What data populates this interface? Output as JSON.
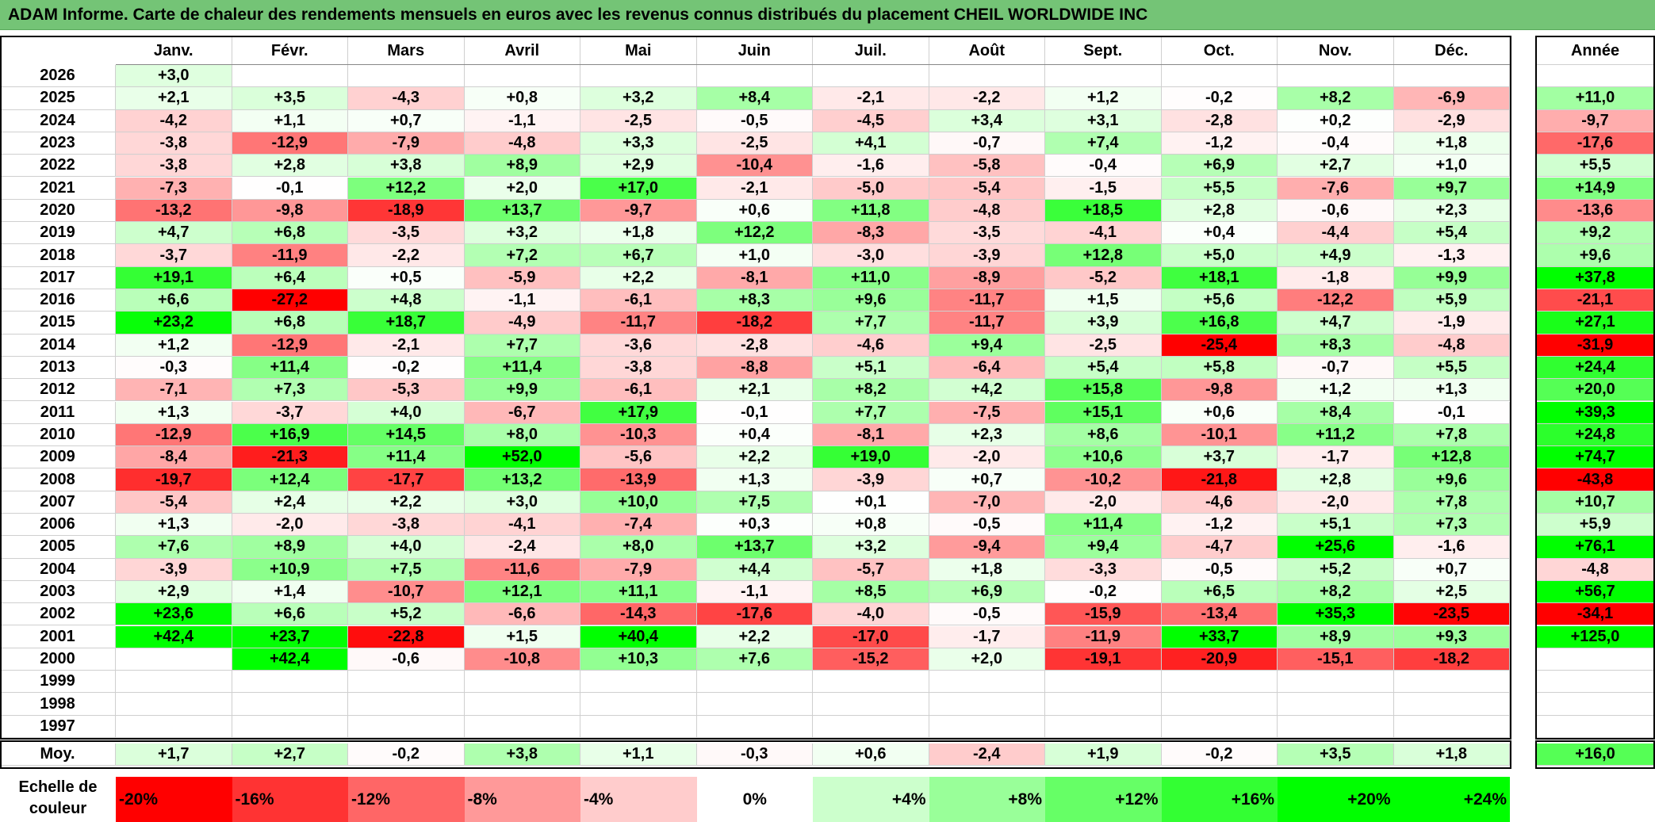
{
  "title": "ADAM Informe. Carte de chaleur des rendements mensuels en euros avec les revenus connus distribués du placement CHEIL WORLDWIDE INC",
  "chart_data": {
    "type": "heatmap",
    "title": "ADAM Informe. Carte de chaleur des rendements mensuels en euros avec les revenus connus distribués du placement CHEIL WORLDWIDE INC",
    "months": [
      "Janv.",
      "Févr.",
      "Mars",
      "Avril",
      "Mai",
      "Juin",
      "Juil.",
      "Août",
      "Sept.",
      "Oct.",
      "Nov.",
      "Déc."
    ],
    "year_header": "Année",
    "rows": [
      {
        "year": "2026",
        "values": [
          "+3,0",
          "",
          "",
          "",
          "",
          "",
          "",
          "",
          "",
          "",
          "",
          ""
        ],
        "annual": ""
      },
      {
        "year": "2025",
        "values": [
          "+2,1",
          "+3,5",
          "-4,3",
          "+0,8",
          "+3,2",
          "+8,4",
          "-2,1",
          "-2,2",
          "+1,2",
          "-0,2",
          "+8,2",
          "-6,9"
        ],
        "annual": "+11,0"
      },
      {
        "year": "2024",
        "values": [
          "-4,2",
          "+1,1",
          "+0,7",
          "-1,1",
          "-2,5",
          "-0,5",
          "-4,5",
          "+3,4",
          "+3,1",
          "-2,8",
          "+0,2",
          "-2,9"
        ],
        "annual": "-9,7"
      },
      {
        "year": "2023",
        "values": [
          "-3,8",
          "-12,9",
          "-7,9",
          "-4,8",
          "+3,3",
          "-2,5",
          "+4,1",
          "-0,7",
          "+7,4",
          "-1,2",
          "-0,4",
          "+1,8"
        ],
        "annual": "-17,6"
      },
      {
        "year": "2022",
        "values": [
          "-3,8",
          "+2,8",
          "+3,8",
          "+8,9",
          "+2,9",
          "-10,4",
          "-1,6",
          "-5,8",
          "-0,4",
          "+6,9",
          "+2,7",
          "+1,0"
        ],
        "annual": "+5,5"
      },
      {
        "year": "2021",
        "values": [
          "-7,3",
          "-0,1",
          "+12,2",
          "+2,0",
          "+17,0",
          "-2,1",
          "-5,0",
          "-5,4",
          "-1,5",
          "+5,5",
          "-7,6",
          "+9,7"
        ],
        "annual": "+14,9"
      },
      {
        "year": "2020",
        "values": [
          "-13,2",
          "-9,8",
          "-18,9",
          "+13,7",
          "-9,7",
          "+0,6",
          "+11,8",
          "-4,8",
          "+18,5",
          "+2,8",
          "-0,6",
          "+2,3"
        ],
        "annual": "-13,6"
      },
      {
        "year": "2019",
        "values": [
          "+4,7",
          "+6,8",
          "-3,5",
          "+3,2",
          "+1,8",
          "+12,2",
          "-8,3",
          "-3,5",
          "-4,1",
          "+0,4",
          "-4,4",
          "+5,4"
        ],
        "annual": "+9,2"
      },
      {
        "year": "2018",
        "values": [
          "-3,7",
          "-11,9",
          "-2,2",
          "+7,2",
          "+6,7",
          "+1,0",
          "-3,0",
          "-3,9",
          "+12,8",
          "+5,0",
          "+4,9",
          "-1,3"
        ],
        "annual": "+9,6"
      },
      {
        "year": "2017",
        "values": [
          "+19,1",
          "+6,4",
          "+0,5",
          "-5,9",
          "+2,2",
          "-8,1",
          "+11,0",
          "-8,9",
          "-5,2",
          "+18,1",
          "-1,8",
          "+9,9"
        ],
        "annual": "+37,8"
      },
      {
        "year": "2016",
        "values": [
          "+6,6",
          "-27,2",
          "+4,8",
          "-1,1",
          "-6,1",
          "+8,3",
          "+9,6",
          "-11,7",
          "+1,5",
          "+5,6",
          "-12,2",
          "+5,9"
        ],
        "annual": "-21,1"
      },
      {
        "year": "2015",
        "values": [
          "+23,2",
          "+6,8",
          "+18,7",
          "-4,9",
          "-11,7",
          "-18,2",
          "+7,7",
          "-11,7",
          "+3,9",
          "+16,8",
          "+4,7",
          "-1,9"
        ],
        "annual": "+27,1"
      },
      {
        "year": "2014",
        "values": [
          "+1,2",
          "-12,9",
          "-2,1",
          "+7,7",
          "-3,6",
          "-2,8",
          "-4,6",
          "+9,4",
          "-2,5",
          "-25,4",
          "+8,3",
          "-4,8"
        ],
        "annual": "-31,9"
      },
      {
        "year": "2013",
        "values": [
          "-0,3",
          "+11,4",
          "-0,2",
          "+11,4",
          "-3,8",
          "-8,8",
          "+5,1",
          "-6,4",
          "+5,4",
          "+5,8",
          "-0,7",
          "+5,5"
        ],
        "annual": "+24,4"
      },
      {
        "year": "2012",
        "values": [
          "-7,1",
          "+7,3",
          "-5,3",
          "+9,9",
          "-6,1",
          "+2,1",
          "+8,2",
          "+4,2",
          "+15,8",
          "-9,8",
          "+1,2",
          "+1,3"
        ],
        "annual": "+20,0"
      },
      {
        "year": "2011",
        "values": [
          "+1,3",
          "-3,7",
          "+4,0",
          "-6,7",
          "+17,9",
          "-0,1",
          "+7,7",
          "-7,5",
          "+15,1",
          "+0,6",
          "+8,4",
          "-0,1"
        ],
        "annual": "+39,3"
      },
      {
        "year": "2010",
        "values": [
          "-12,9",
          "+16,9",
          "+14,5",
          "+8,0",
          "-10,3",
          "+0,4",
          "-8,1",
          "+2,3",
          "+8,6",
          "-10,1",
          "+11,2",
          "+7,8"
        ],
        "annual": "+24,8"
      },
      {
        "year": "2009",
        "values": [
          "-8,4",
          "-21,3",
          "+11,4",
          "+52,0",
          "-5,6",
          "+2,2",
          "+19,0",
          "-2,0",
          "+10,6",
          "+3,7",
          "-1,7",
          "+12,8"
        ],
        "annual": "+74,7"
      },
      {
        "year": "2008",
        "values": [
          "-19,7",
          "+12,4",
          "-17,7",
          "+13,2",
          "-13,9",
          "+1,3",
          "-3,9",
          "+0,7",
          "-10,2",
          "-21,8",
          "+2,8",
          "+9,6"
        ],
        "annual": "-43,8"
      },
      {
        "year": "2007",
        "values": [
          "-5,4",
          "+2,4",
          "+2,2",
          "+3,0",
          "+10,0",
          "+7,5",
          "+0,1",
          "-7,0",
          "-2,0",
          "-4,6",
          "-2,0",
          "+7,8"
        ],
        "annual": "+10,7"
      },
      {
        "year": "2006",
        "values": [
          "+1,3",
          "-2,0",
          "-3,8",
          "-4,1",
          "-7,4",
          "+0,3",
          "+0,8",
          "-0,5",
          "+11,4",
          "-1,2",
          "+5,1",
          "+7,3"
        ],
        "annual": "+5,9"
      },
      {
        "year": "2005",
        "values": [
          "+7,6",
          "+8,9",
          "+4,0",
          "-2,4",
          "+8,0",
          "+13,7",
          "+3,2",
          "-9,4",
          "+9,4",
          "-4,7",
          "+25,6",
          "-1,6"
        ],
        "annual": "+76,1"
      },
      {
        "year": "2004",
        "values": [
          "-3,9",
          "+10,9",
          "+7,5",
          "-11,6",
          "-7,9",
          "+4,4",
          "-5,7",
          "+1,8",
          "-3,3",
          "-0,5",
          "+5,2",
          "+0,7"
        ],
        "annual": "-4,8"
      },
      {
        "year": "2003",
        "values": [
          "+2,9",
          "+1,4",
          "-10,7",
          "+12,1",
          "+11,1",
          "-1,1",
          "+8,5",
          "+6,9",
          "-0,2",
          "+6,5",
          "+8,2",
          "+2,5"
        ],
        "annual": "+56,7"
      },
      {
        "year": "2002",
        "values": [
          "+23,6",
          "+6,6",
          "+5,2",
          "-6,6",
          "-14,3",
          "-17,6",
          "-4,0",
          "-0,5",
          "-15,9",
          "-13,4",
          "+35,3",
          "-23,5"
        ],
        "annual": "-34,1"
      },
      {
        "year": "2001",
        "values": [
          "+42,4",
          "+23,7",
          "-22,8",
          "+1,5",
          "+40,4",
          "+2,2",
          "-17,0",
          "-1,7",
          "-11,9",
          "+33,7",
          "+8,9",
          "+9,3"
        ],
        "annual": "+125,0"
      },
      {
        "year": "2000",
        "values": [
          "",
          "+42,4",
          "-0,6",
          "-10,8",
          "+10,3",
          "+7,6",
          "-15,2",
          "+2,0",
          "-19,1",
          "-20,9",
          "-15,1",
          "-18,2"
        ],
        "annual": ""
      },
      {
        "year": "1999",
        "values": [
          "",
          "",
          "",
          "",
          "",
          "",
          "",
          "",
          "",
          "",
          "",
          ""
        ],
        "annual": ""
      },
      {
        "year": "1998",
        "values": [
          "",
          "",
          "",
          "",
          "",
          "",
          "",
          "",
          "",
          "",
          "",
          ""
        ],
        "annual": ""
      },
      {
        "year": "1997",
        "values": [
          "",
          "",
          "",
          "",
          "",
          "",
          "",
          "",
          "",
          "",
          "",
          ""
        ],
        "annual": ""
      }
    ],
    "average": {
      "label": "Moy.",
      "values": [
        "+1,7",
        "+2,7",
        "-0,2",
        "+3,8",
        "+1,1",
        "-0,3",
        "+0,6",
        "-2,4",
        "+1,9",
        "-0,2",
        "+3,5",
        "+1,8"
      ],
      "annual": "+16,0"
    },
    "color_scale": {
      "label": "Echelle de couleur",
      "steps": [
        {
          "label": "-20%",
          "value": -20
        },
        {
          "label": "-16%",
          "value": -16
        },
        {
          "label": "-12%",
          "value": -12
        },
        {
          "label": "-8%",
          "value": -8
        },
        {
          "label": "-4%",
          "value": -4
        },
        {
          "label": "0%",
          "value": 0
        },
        {
          "label": "+4%",
          "value": 4
        },
        {
          "label": "+8%",
          "value": 8
        },
        {
          "label": "+12%",
          "value": 12
        },
        {
          "label": "+16%",
          "value": 16
        },
        {
          "label": "+20%",
          "value": 20
        },
        {
          "label": "+24%",
          "value": 24
        }
      ],
      "negative_color": "#ff0000",
      "neutral_color": "#ffffff",
      "positive_color": "#00ff00"
    }
  }
}
